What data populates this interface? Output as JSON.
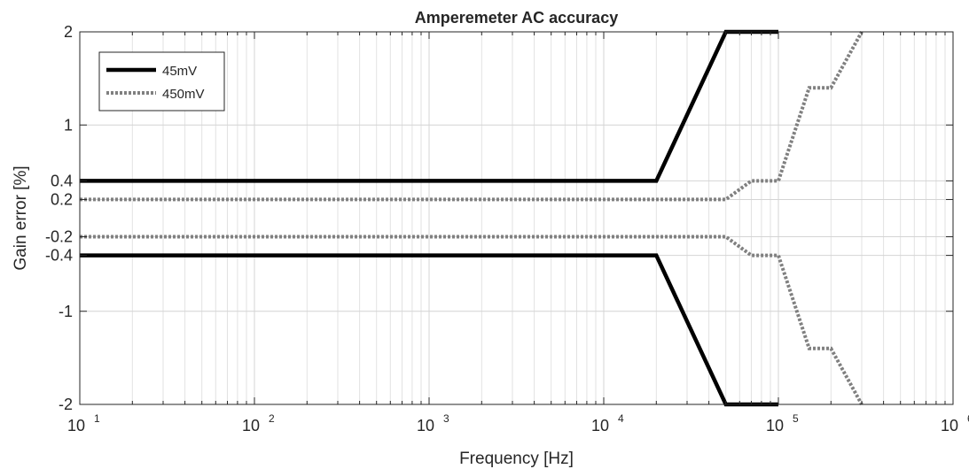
{
  "chart_data": {
    "type": "line",
    "title": "Amperemeter AC accuracy",
    "xlabel": "Frequency [Hz]",
    "ylabel": "Gain error [%]",
    "x_scale": "log",
    "xlim": [
      10,
      1000000
    ],
    "ylim": [
      -2,
      2
    ],
    "grid": true,
    "legend_position": "top-left",
    "x_ticks": [
      {
        "value": 10,
        "base": "10",
        "exp": "1"
      },
      {
        "value": 100,
        "base": "10",
        "exp": "2"
      },
      {
        "value": 1000,
        "base": "10",
        "exp": "3"
      },
      {
        "value": 10000,
        "base": "10",
        "exp": "4"
      },
      {
        "value": 100000,
        "base": "10",
        "exp": "5"
      },
      {
        "value": 1000000,
        "base": "10",
        "exp": "6"
      }
    ],
    "y_ticks": [
      {
        "value": 2,
        "label": "2"
      },
      {
        "value": 1,
        "label": "1"
      },
      {
        "value": 0.4,
        "label": "0.4"
      },
      {
        "value": 0.2,
        "label": "0.2"
      },
      {
        "value": -0.2,
        "label": "-0.2"
      },
      {
        "value": -0.4,
        "label": "-0.4"
      },
      {
        "value": -1,
        "label": "-1"
      },
      {
        "value": -2,
        "label": "-2"
      }
    ],
    "series": [
      {
        "name": "45mV",
        "color": "#000000",
        "style": "solid",
        "lines": [
          {
            "x": [
              10,
              20000,
              50000,
              100000
            ],
            "y": [
              0.4,
              0.4,
              2,
              2
            ]
          },
          {
            "x": [
              10,
              20000,
              50000,
              100000
            ],
            "y": [
              -0.4,
              -0.4,
              -2,
              -2
            ]
          }
        ]
      },
      {
        "name": "450mV",
        "color": "#808080",
        "style": "dotted",
        "lines": [
          {
            "x": [
              10,
              50000,
              70000,
              100000,
              150000,
              200000,
              300000
            ],
            "y": [
              0.2,
              0.2,
              0.4,
              0.4,
              1.4,
              1.4,
              2
            ]
          },
          {
            "x": [
              10,
              50000,
              70000,
              100000,
              150000,
              200000,
              300000
            ],
            "y": [
              -0.2,
              -0.2,
              -0.4,
              -0.4,
              -1.4,
              -1.4,
              -2
            ]
          }
        ]
      }
    ]
  }
}
